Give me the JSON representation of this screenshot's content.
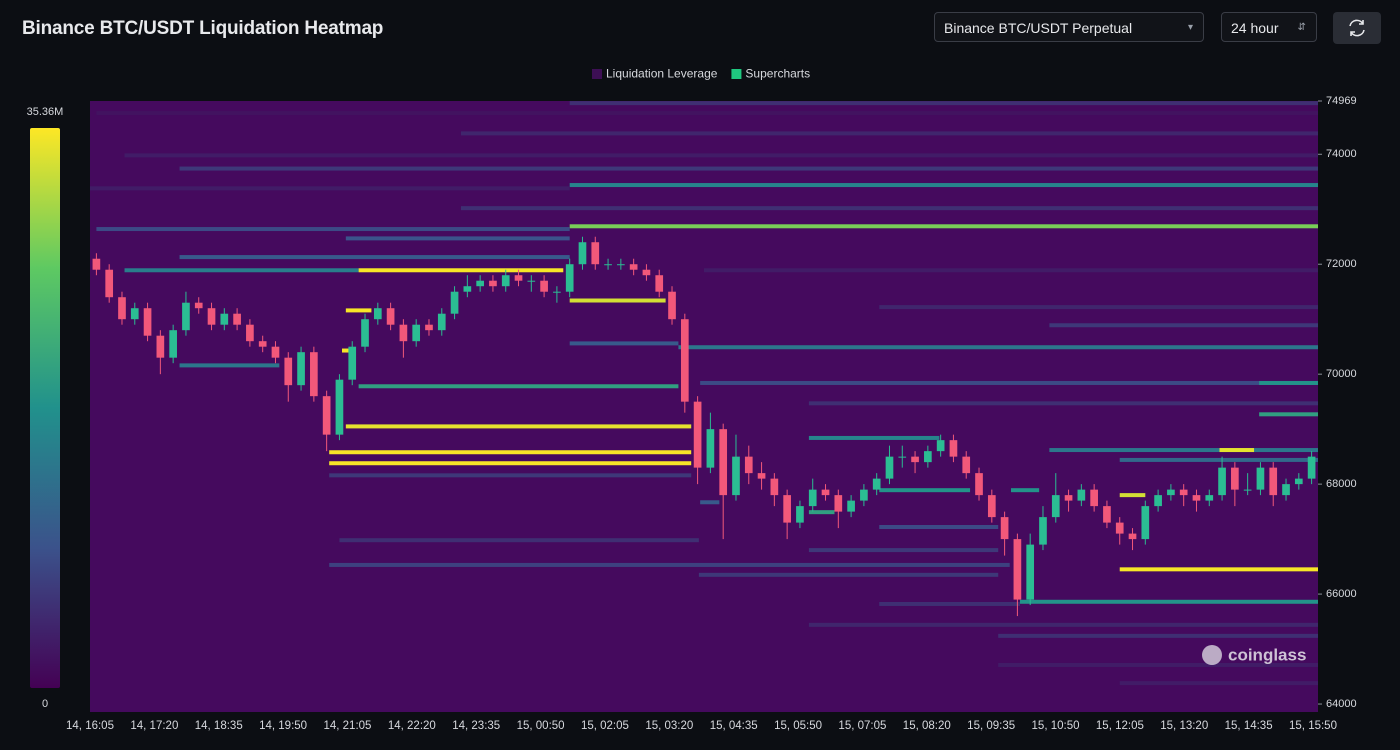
{
  "header": {
    "title": "Binance BTC/USDT Liquidation Heatmap",
    "market": "Binance BTC/USDT Perpetual",
    "range": "24 hour"
  },
  "watermark": "coinglass",
  "chart_data": {
    "type": "heatmap-candlestick",
    "legend": [
      {
        "name": "Liquidation Leverage",
        "color": "#3d0f54"
      },
      {
        "name": "Supercharts",
        "color": "#1fc77f"
      }
    ],
    "x_labels": [
      "14, 16:05",
      "14, 17:20",
      "14, 18:35",
      "14, 19:50",
      "14, 21:05",
      "14, 22:20",
      "14, 23:35",
      "15, 00:50",
      "15, 02:05",
      "15, 03:20",
      "15, 04:35",
      "15, 05:50",
      "15, 07:05",
      "15, 08:20",
      "15, 09:35",
      "15, 10:50",
      "15, 12:05",
      "15, 13:20",
      "15, 14:35",
      "15, 15:50"
    ],
    "ylim": [
      63855,
      74969
    ],
    "yticks": [
      64000,
      66000,
      68000,
      70000,
      72000,
      74000,
      74969
    ],
    "zlim": [
      0,
      35.36
    ],
    "zticks": [
      0,
      {
        "value": 35.36,
        "label": "35.36M"
      }
    ],
    "colorscale": [
      "#440154",
      "#3b528b",
      "#21918c",
      "#5ec962",
      "#fde725"
    ],
    "background": "#450a5e",
    "up_color": "#2bbd93",
    "down_color": "#f2587a",
    "candles": [
      [
        72100,
        72200,
        71800,
        71900
      ],
      [
        71900,
        72000,
        71300,
        71400
      ],
      [
        71400,
        71500,
        70900,
        71000
      ],
      [
        71000,
        71300,
        70900,
        71200
      ],
      [
        71200,
        71300,
        70600,
        70700
      ],
      [
        70700,
        70800,
        70000,
        70300
      ],
      [
        70300,
        70900,
        70200,
        70800
      ],
      [
        70800,
        71500,
        70700,
        71300
      ],
      [
        71300,
        71400,
        71100,
        71200
      ],
      [
        71200,
        71300,
        70800,
        70900
      ],
      [
        70900,
        71200,
        70800,
        71100
      ],
      [
        71100,
        71200,
        70800,
        70900
      ],
      [
        70900,
        71000,
        70500,
        70600
      ],
      [
        70600,
        70700,
        70400,
        70500
      ],
      [
        70500,
        70600,
        70200,
        70300
      ],
      [
        70300,
        70400,
        69500,
        69800
      ],
      [
        69800,
        70500,
        69700,
        70400
      ],
      [
        70400,
        70500,
        69500,
        69600
      ],
      [
        69600,
        69700,
        68600,
        68900
      ],
      [
        68900,
        70000,
        68800,
        69900
      ],
      [
        69900,
        70600,
        69800,
        70500
      ],
      [
        70500,
        71100,
        70400,
        71000
      ],
      [
        71000,
        71300,
        70900,
        71200
      ],
      [
        71200,
        71300,
        70800,
        70900
      ],
      [
        70900,
        71000,
        70300,
        70600
      ],
      [
        70600,
        71000,
        70500,
        70900
      ],
      [
        70900,
        71000,
        70700,
        70800
      ],
      [
        70800,
        71200,
        70700,
        71100
      ],
      [
        71100,
        71600,
        71000,
        71500
      ],
      [
        71500,
        71800,
        71400,
        71600
      ],
      [
        71600,
        71800,
        71500,
        71700
      ],
      [
        71700,
        71800,
        71500,
        71600
      ],
      [
        71600,
        71900,
        71500,
        71800
      ],
      [
        71800,
        71900,
        71600,
        71700
      ],
      [
        71700,
        71800,
        71500,
        71700
      ],
      [
        71700,
        71800,
        71400,
        71500
      ],
      [
        71500,
        71600,
        71300,
        71500
      ],
      [
        71500,
        72100,
        71400,
        72000
      ],
      [
        72000,
        72500,
        71900,
        72400
      ],
      [
        72400,
        72500,
        71900,
        72000
      ],
      [
        72000,
        72100,
        71900,
        72000
      ],
      [
        72000,
        72100,
        71900,
        72000
      ],
      [
        72000,
        72100,
        71800,
        71900
      ],
      [
        71900,
        72000,
        71700,
        71800
      ],
      [
        71800,
        71900,
        71400,
        71500
      ],
      [
        71500,
        71600,
        70900,
        71000
      ],
      [
        71000,
        71100,
        69300,
        69500
      ],
      [
        69500,
        69600,
        68000,
        68300
      ],
      [
        68300,
        69300,
        68200,
        69000
      ],
      [
        69000,
        69100,
        67000,
        67800
      ],
      [
        67800,
        68900,
        67700,
        68500
      ],
      [
        68500,
        68700,
        68000,
        68200
      ],
      [
        68200,
        68400,
        67900,
        68100
      ],
      [
        68100,
        68200,
        67600,
        67800
      ],
      [
        67800,
        67900,
        67000,
        67300
      ],
      [
        67300,
        67700,
        67200,
        67600
      ],
      [
        67600,
        68100,
        67500,
        67900
      ],
      [
        67900,
        68000,
        67700,
        67800
      ],
      [
        67800,
        67900,
        67200,
        67500
      ],
      [
        67500,
        67800,
        67400,
        67700
      ],
      [
        67700,
        68000,
        67600,
        67900
      ],
      [
        67900,
        68200,
        67800,
        68100
      ],
      [
        68100,
        68700,
        68000,
        68500
      ],
      [
        68500,
        68700,
        68300,
        68500
      ],
      [
        68500,
        68600,
        68200,
        68400
      ],
      [
        68400,
        68700,
        68300,
        68600
      ],
      [
        68600,
        68900,
        68500,
        68800
      ],
      [
        68800,
        68900,
        68400,
        68500
      ],
      [
        68500,
        68600,
        68100,
        68200
      ],
      [
        68200,
        68300,
        67700,
        67800
      ],
      [
        67800,
        67900,
        67300,
        67400
      ],
      [
        67400,
        67500,
        66700,
        67000
      ],
      [
        67000,
        67100,
        65600,
        65900
      ],
      [
        65900,
        67100,
        65800,
        66900
      ],
      [
        66900,
        67600,
        66800,
        67400
      ],
      [
        67400,
        68200,
        67300,
        67800
      ],
      [
        67800,
        67900,
        67500,
        67700
      ],
      [
        67700,
        68000,
        67600,
        67900
      ],
      [
        67900,
        68000,
        67500,
        67600
      ],
      [
        67600,
        67700,
        67200,
        67300
      ],
      [
        67300,
        67400,
        66900,
        67100
      ],
      [
        67100,
        67200,
        66800,
        67000
      ],
      [
        67000,
        67700,
        66900,
        67600
      ],
      [
        67600,
        67900,
        67500,
        67800
      ],
      [
        67800,
        68000,
        67700,
        67900
      ],
      [
        67900,
        68000,
        67600,
        67800
      ],
      [
        67800,
        67900,
        67500,
        67700
      ],
      [
        67700,
        67900,
        67600,
        67800
      ],
      [
        67800,
        68500,
        67700,
        68300
      ],
      [
        68300,
        68400,
        67600,
        67900
      ],
      [
        67900,
        68200,
        67800,
        67900
      ],
      [
        67900,
        68400,
        67800,
        68300
      ],
      [
        68300,
        68400,
        67600,
        67800
      ],
      [
        67800,
        68100,
        67700,
        68000
      ],
      [
        68000,
        68200,
        67900,
        68100
      ],
      [
        68100,
        68600,
        68000,
        68500
      ]
    ],
    "bands": [
      [
        74930,
        37.5,
        96,
        5
      ],
      [
        74750,
        0.5,
        96,
        2
      ],
      [
        74380,
        29,
        96,
        4
      ],
      [
        73980,
        2.7,
        96,
        3
      ],
      [
        73740,
        7,
        96,
        6
      ],
      [
        73440,
        37.5,
        96,
        16
      ],
      [
        73380,
        0,
        37.5,
        3
      ],
      [
        73020,
        29,
        96,
        5
      ],
      [
        72690,
        37.5,
        96,
        28
      ],
      [
        72640,
        0.5,
        37.5,
        8
      ],
      [
        72470,
        20,
        37.5,
        9
      ],
      [
        72130,
        7,
        37.5,
        10
      ],
      [
        71890,
        48,
        96,
        3
      ],
      [
        71890,
        2.7,
        21,
        15
      ],
      [
        71890,
        21,
        37,
        35
      ],
      [
        71340,
        37.5,
        45,
        33
      ],
      [
        71220,
        61.7,
        96,
        4
      ],
      [
        71160,
        20,
        22,
        35
      ],
      [
        70890,
        75,
        96,
        6
      ],
      [
        70560,
        37.5,
        46,
        10
      ],
      [
        70490,
        46,
        96,
        14
      ],
      [
        70430,
        19.7,
        20.7,
        35
      ],
      [
        70160,
        7,
        14.8,
        14
      ],
      [
        69840,
        47.7,
        96,
        8
      ],
      [
        69840,
        91.4,
        96,
        18
      ],
      [
        69780,
        21,
        46,
        20
      ],
      [
        69470,
        56.2,
        96,
        5
      ],
      [
        69270,
        91.4,
        96,
        20
      ],
      [
        69050,
        20,
        47,
        34
      ],
      [
        68840,
        56.2,
        66.4,
        16
      ],
      [
        68620,
        75,
        96,
        14
      ],
      [
        68620,
        88.3,
        91,
        34
      ],
      [
        68580,
        18.7,
        47,
        35
      ],
      [
        68440,
        80.5,
        96,
        12
      ],
      [
        68380,
        18.7,
        47,
        35
      ],
      [
        68160,
        18.7,
        47,
        6
      ],
      [
        67890,
        61.7,
        68.8,
        18
      ],
      [
        67890,
        72,
        74.2,
        18
      ],
      [
        67800,
        80.5,
        82.5,
        33
      ],
      [
        67670,
        47.7,
        49.2,
        10
      ],
      [
        67490,
        56.2,
        58.2,
        20
      ],
      [
        67220,
        61.7,
        71,
        8
      ],
      [
        66980,
        19.5,
        47.6,
        5
      ],
      [
        66800,
        56.2,
        71,
        6
      ],
      [
        66530,
        18.7,
        71.9,
        7
      ],
      [
        66450,
        80.5,
        96,
        35
      ],
      [
        66350,
        47.6,
        71,
        6
      ],
      [
        65860,
        72.7,
        96,
        18
      ],
      [
        65820,
        61.7,
        72.7,
        5
      ],
      [
        65440,
        56.2,
        96,
        4
      ],
      [
        65240,
        71,
        96,
        5
      ],
      [
        64710,
        71,
        96,
        3
      ],
      [
        64380,
        80.5,
        96,
        3
      ]
    ]
  }
}
